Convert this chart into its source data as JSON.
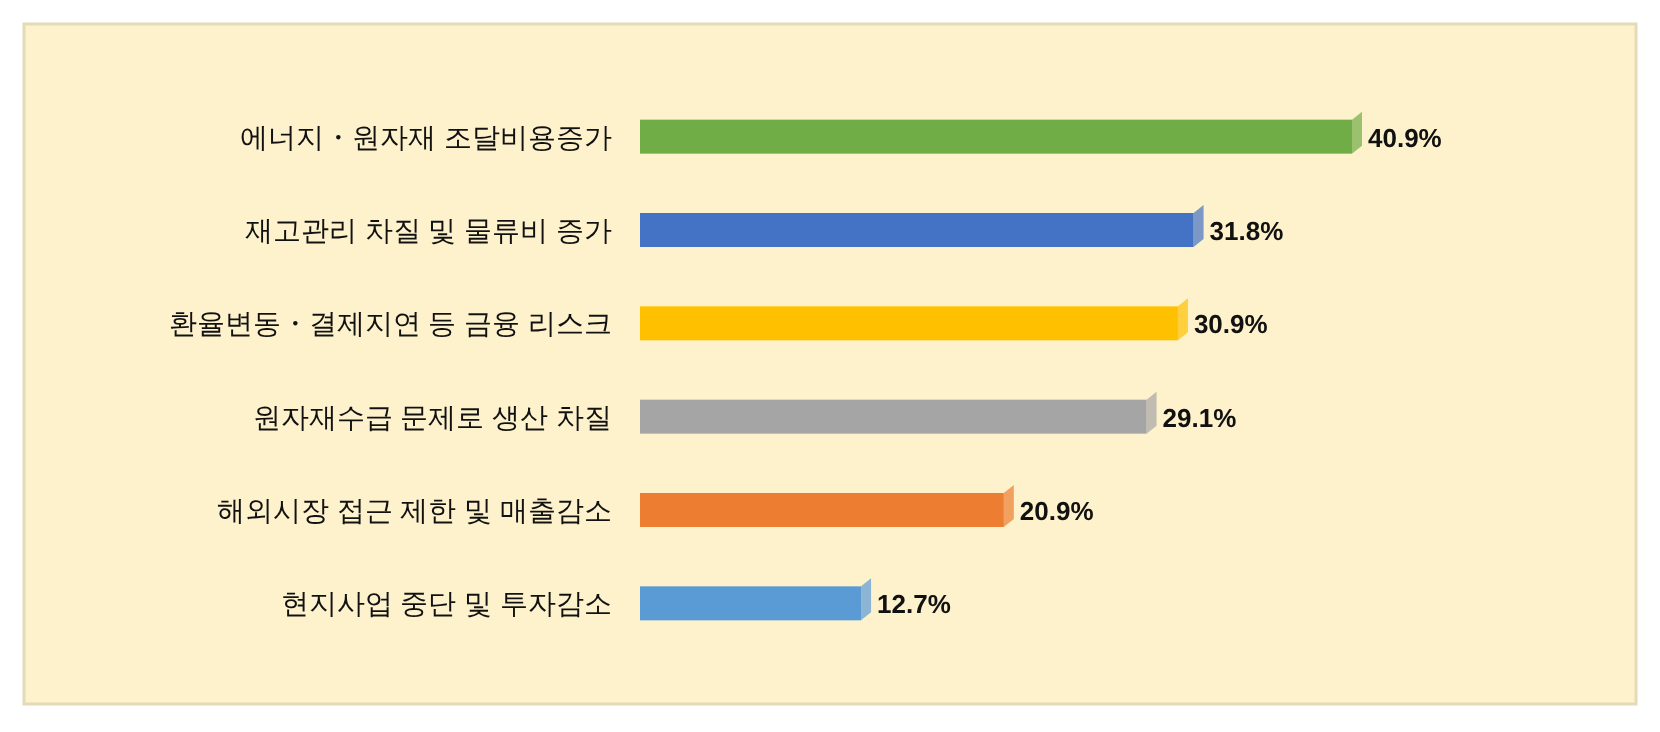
{
  "chart_data": {
    "type": "bar",
    "orientation": "horizontal",
    "categories": [
      "에너지・원자재 조달비용증가",
      "재고관리 차질 및 물류비 증가",
      "환율변동・결제지연 등 금융 리스크",
      "원자재수급 문제로 생산 차질",
      "해외시장 접근 제한 및 매출감소",
      "현지사업 중단 및 투자감소"
    ],
    "values": [
      40.9,
      31.8,
      30.9,
      29.1,
      20.9,
      12.7
    ],
    "colors": [
      "#70ad47",
      "#4472c4",
      "#ffc000",
      "#a5a5a5",
      "#ed7d31",
      "#5b9bd5"
    ],
    "value_labels": [
      "40.9%",
      "31.8%",
      "30.9%",
      "29.1%",
      "20.9%",
      "12.7%"
    ],
    "tick_labels": "y"
  }
}
